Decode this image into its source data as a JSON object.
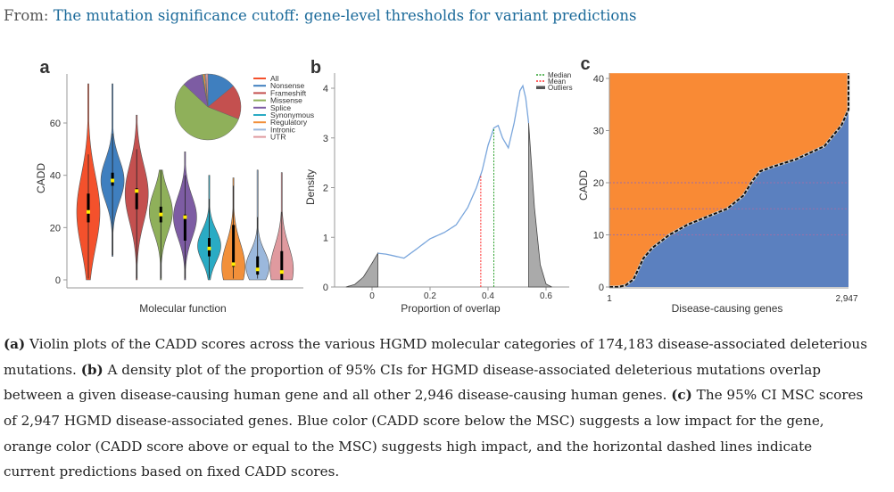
{
  "header": {
    "prefix": "From: ",
    "title": "The mutation significance cutoff: gene-level thresholds for variant predictions"
  },
  "colors": {
    "link": "#1b6a9a",
    "orange": "#f98a35",
    "blue": "#5b80bf",
    "median": "#2ca02c",
    "mean": "#ff2a2a",
    "outliers": "#aaaaaa",
    "density": "#7aa6dc"
  },
  "chart_data": [
    {
      "panel": "a",
      "type": "violin",
      "ylabel": "CADD",
      "xlabel": "Molecular function",
      "ylim": [
        0,
        78
      ],
      "yticks": [
        0,
        20,
        40,
        60
      ],
      "series": [
        {
          "name": "All",
          "color": "#f4512c",
          "min": 0,
          "max": 75,
          "peak": 26,
          "sd": 14,
          "median": 26,
          "q1": 22,
          "q3": 33
        },
        {
          "name": "Nonsense",
          "color": "#3f7fbf",
          "min": 9,
          "max": 75,
          "peak": 38,
          "sd": 8,
          "median": 38,
          "q1": 36,
          "q3": 41
        },
        {
          "name": "Frameshift",
          "color": "#c4504f",
          "min": 0,
          "max": 63,
          "peak": 33,
          "sd": 11,
          "median": 34,
          "q1": 27,
          "q3": 35
        },
        {
          "name": "Missense",
          "color": "#8fb05a",
          "min": 0,
          "max": 42,
          "peak": 26,
          "sd": 8,
          "median": 25,
          "q1": 22,
          "q3": 28
        },
        {
          "name": "Splice",
          "color": "#7d5ca3",
          "min": 0,
          "max": 49,
          "peak": 24,
          "sd": 8,
          "median": 24,
          "q1": 15,
          "q3": 25
        },
        {
          "name": "Synonymous",
          "color": "#2aabc4",
          "min": 0,
          "max": 40,
          "peak": 13,
          "sd": 6,
          "median": 12,
          "q1": 9,
          "q3": 16
        },
        {
          "name": "Regulatory",
          "color": "#f2903a",
          "min": 0,
          "max": 39,
          "peak": 5,
          "sd": 9,
          "median": 6,
          "q1": 5,
          "q3": 21
        },
        {
          "name": "Intronic",
          "color": "#9bb8dc",
          "min": 0,
          "max": 42,
          "peak": 5,
          "sd": 6,
          "median": 4,
          "q1": 2,
          "q3": 9
        },
        {
          "name": "UTR",
          "color": "#e09a9f",
          "min": 0,
          "max": 41,
          "peak": 4,
          "sd": 9,
          "median": 3,
          "q1": 0,
          "q3": 11
        }
      ],
      "pie": {
        "type": "pie",
        "slices": [
          {
            "name": "Nonsense",
            "value": 0.14
          },
          {
            "name": "Frameshift",
            "value": 0.17
          },
          {
            "name": "Missense",
            "value": 0.56
          },
          {
            "name": "Splice",
            "value": 0.1
          },
          {
            "name": "Synonymous",
            "value": 0.005
          },
          {
            "name": "Regulatory",
            "value": 0.01
          },
          {
            "name": "Intronic",
            "value": 0.005
          },
          {
            "name": "UTR",
            "value": 0.01
          }
        ]
      }
    },
    {
      "panel": "b",
      "type": "area",
      "ylabel": "Density",
      "xlabel": "Proportion of overlap",
      "xlim": [
        -0.12,
        0.67
      ],
      "ylim": [
        0,
        4.3
      ],
      "xticks": [
        "0",
        "0.2",
        "0.4",
        "0.6"
      ],
      "yticks": [
        "0",
        "1",
        "2",
        "3",
        "4"
      ],
      "x": [
        -0.09,
        -0.06,
        -0.03,
        0,
        0.02,
        0.05,
        0.08,
        0.11,
        0.15,
        0.2,
        0.25,
        0.29,
        0.33,
        0.36,
        0.38,
        0.4,
        0.42,
        0.435,
        0.45,
        0.47,
        0.49,
        0.51,
        0.52,
        0.53,
        0.54,
        0.56,
        0.58,
        0.6,
        0.62
      ],
      "y": [
        0,
        0.05,
        0.2,
        0.48,
        0.68,
        0.66,
        0.62,
        0.58,
        0.75,
        0.97,
        1.1,
        1.25,
        1.6,
        2.0,
        2.35,
        2.85,
        3.2,
        3.25,
        3.0,
        2.8,
        3.3,
        3.95,
        4.05,
        3.8,
        3.3,
        1.6,
        0.45,
        0.06,
        0
      ],
      "mean": 0.375,
      "median": 0.42,
      "outlier_low": 0.02,
      "outlier_high": 0.54,
      "legend": [
        "Median",
        "Mean",
        "Outliers"
      ],
      "legend_position": "top-right"
    },
    {
      "panel": "c",
      "type": "area",
      "ylabel": "CADD",
      "xlabel": "Disease-causing genes",
      "xticks": [
        "1",
        "2,947"
      ],
      "xlim": [
        1,
        2947
      ],
      "ylim": [
        0,
        41
      ],
      "yticks": [
        0,
        10,
        20,
        30,
        40
      ],
      "x": [
        1,
        100,
        200,
        300,
        420,
        530,
        740,
        970,
        1450,
        1650,
        1770,
        1860,
        2000,
        2300,
        2650,
        2860,
        2947
      ],
      "y": [
        0,
        0,
        0.3,
        1.5,
        5.5,
        7.5,
        10,
        12,
        15,
        17.5,
        20.5,
        22.2,
        23,
        24.5,
        27,
        31,
        34
      ],
      "reference_lines": [
        10,
        15,
        20
      ]
    }
  ],
  "caption": [
    [
      {
        "b": "(a)"
      },
      {
        "t": " Violin plots of the CADD scores across the various HGMD molecular categories of 174,183 disease-associated deleterious"
      }
    ],
    [
      {
        "t": "mutations. "
      },
      {
        "b": "(b)"
      },
      {
        "t": " A density plot of the proportion of 95% CIs for HGMD disease-associated deleterious mutations overlap"
      }
    ],
    [
      {
        "t": "between a given disease-causing human gene and all other 2,946 disease-causing human genes. "
      },
      {
        "b": "(c)"
      },
      {
        "t": " The 95% CI MSC scores"
      }
    ],
    [
      {
        "t": "of 2,947 HGMD disease-associated genes. Blue color (CADD score below the MSC) suggests a low impact for the gene,"
      }
    ],
    [
      {
        "t": "orange color (CADD score above or equal to the MSC) suggests high impact, and the horizontal dashed lines indicate"
      }
    ],
    [
      {
        "t": "current predictions based on fixed CADD scores."
      }
    ]
  ]
}
